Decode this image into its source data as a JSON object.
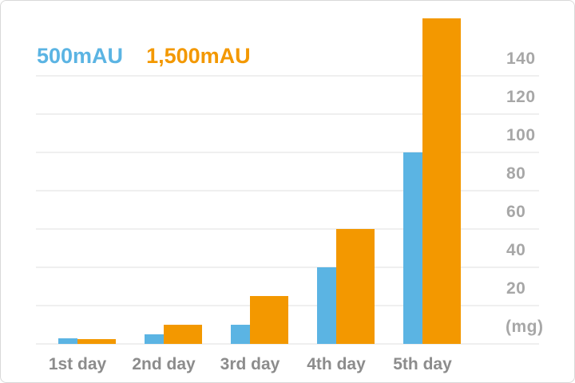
{
  "card": {
    "background": "#ffffff",
    "border_color": "#d9d9d9"
  },
  "legend": {
    "position": "top-left",
    "items": [
      {
        "label": "500mAU",
        "color": "#5bb4e3"
      },
      {
        "label": "1,500mAU",
        "color": "#f39800"
      }
    ]
  },
  "chart_data": {
    "type": "bar",
    "categories": [
      "1st day",
      "2nd day",
      "3rd day",
      "4th day",
      "5th day"
    ],
    "series": [
      {
        "name": "500mAU",
        "color": "#5bb4e3",
        "values": [
          3,
          5,
          10,
          40,
          100
        ]
      },
      {
        "name": "1,500mAU",
        "color": "#f39800",
        "values": [
          2.5,
          10,
          25,
          60,
          170
        ]
      }
    ],
    "title": "",
    "xlabel": "",
    "ylabel": "(mg)",
    "ylim": [
      0,
      179
    ],
    "y_tick_interval": 20,
    "y_tick_labels": [
      "140",
      "120",
      "100",
      "80",
      "60",
      "40",
      "20"
    ],
    "unit_label": "(mg)",
    "grid": true,
    "axis_side": "right",
    "gridline_color": "#efefef",
    "tick_label_color": "#a7a7a7",
    "category_label_color": "#8c8c8c"
  }
}
